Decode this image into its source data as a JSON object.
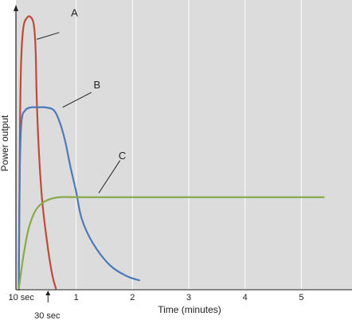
{
  "chart_data": {
    "type": "line",
    "xlabel": "Time (minutes)",
    "ylabel": "Power output",
    "x_ticks": [
      {
        "value": 0.1667,
        "label": "10 sec"
      },
      {
        "value": 1,
        "label": "1"
      },
      {
        "value": 2,
        "label": "2"
      },
      {
        "value": 3,
        "label": "3"
      },
      {
        "value": 4,
        "label": "4"
      },
      {
        "value": 5,
        "label": "5"
      }
    ],
    "x_annotation": {
      "value": 0.5,
      "label": "30 sec"
    },
    "xlim": [
      -0.07,
      5.9
    ],
    "ylim": [
      0,
      100
    ],
    "grid": "vertical",
    "background": "#dcdcdc",
    "series": [
      {
        "name": "A",
        "color": "#c0493b",
        "points": [
          [
            -0.02,
            0
          ],
          [
            0.0,
            55
          ],
          [
            0.02,
            82
          ],
          [
            0.06,
            96
          ],
          [
            0.13,
            100
          ],
          [
            0.2,
            100
          ],
          [
            0.25,
            97
          ],
          [
            0.28,
            88
          ],
          [
            0.3,
            70
          ],
          [
            0.34,
            50
          ],
          [
            0.4,
            32
          ],
          [
            0.5,
            15
          ],
          [
            0.58,
            5
          ],
          [
            0.64,
            0.5
          ]
        ],
        "label_at": [
          0.97,
          100.5
        ],
        "leader_from": [
          0.7,
          94.5
        ],
        "leader_to": [
          0.3,
          92
        ]
      },
      {
        "name": "B",
        "color": "#4e79b8",
        "points": [
          [
            -0.02,
            0
          ],
          [
            0.0,
            45
          ],
          [
            0.03,
            62
          ],
          [
            0.1,
            66
          ],
          [
            0.2,
            67
          ],
          [
            0.3,
            67
          ],
          [
            0.45,
            67
          ],
          [
            0.6,
            66
          ],
          [
            0.7,
            62
          ],
          [
            0.8,
            55
          ],
          [
            0.9,
            45
          ],
          [
            1.0,
            36
          ],
          [
            1.1,
            26
          ],
          [
            1.3,
            17
          ],
          [
            1.6,
            9
          ],
          [
            1.9,
            5
          ],
          [
            2.12,
            3.5
          ]
        ],
        "label_at": [
          1.37,
          74
        ],
        "leader_from": [
          1.27,
          72.5
        ],
        "leader_to": [
          0.76,
          67
        ]
      },
      {
        "name": "C",
        "color": "#8aaa4a",
        "points": [
          [
            -0.02,
            0
          ],
          [
            0.06,
            12
          ],
          [
            0.15,
            22
          ],
          [
            0.25,
            28
          ],
          [
            0.35,
            31
          ],
          [
            0.5,
            33
          ],
          [
            0.7,
            34
          ],
          [
            1.0,
            34
          ],
          [
            2.0,
            34
          ],
          [
            3.0,
            34
          ],
          [
            4.0,
            34
          ],
          [
            5.0,
            34
          ],
          [
            5.4,
            34
          ]
        ],
        "label_at": [
          1.82,
          48
        ],
        "leader_from": [
          1.78,
          47.5
        ],
        "leader_to": [
          1.4,
          35.5
        ]
      }
    ]
  }
}
